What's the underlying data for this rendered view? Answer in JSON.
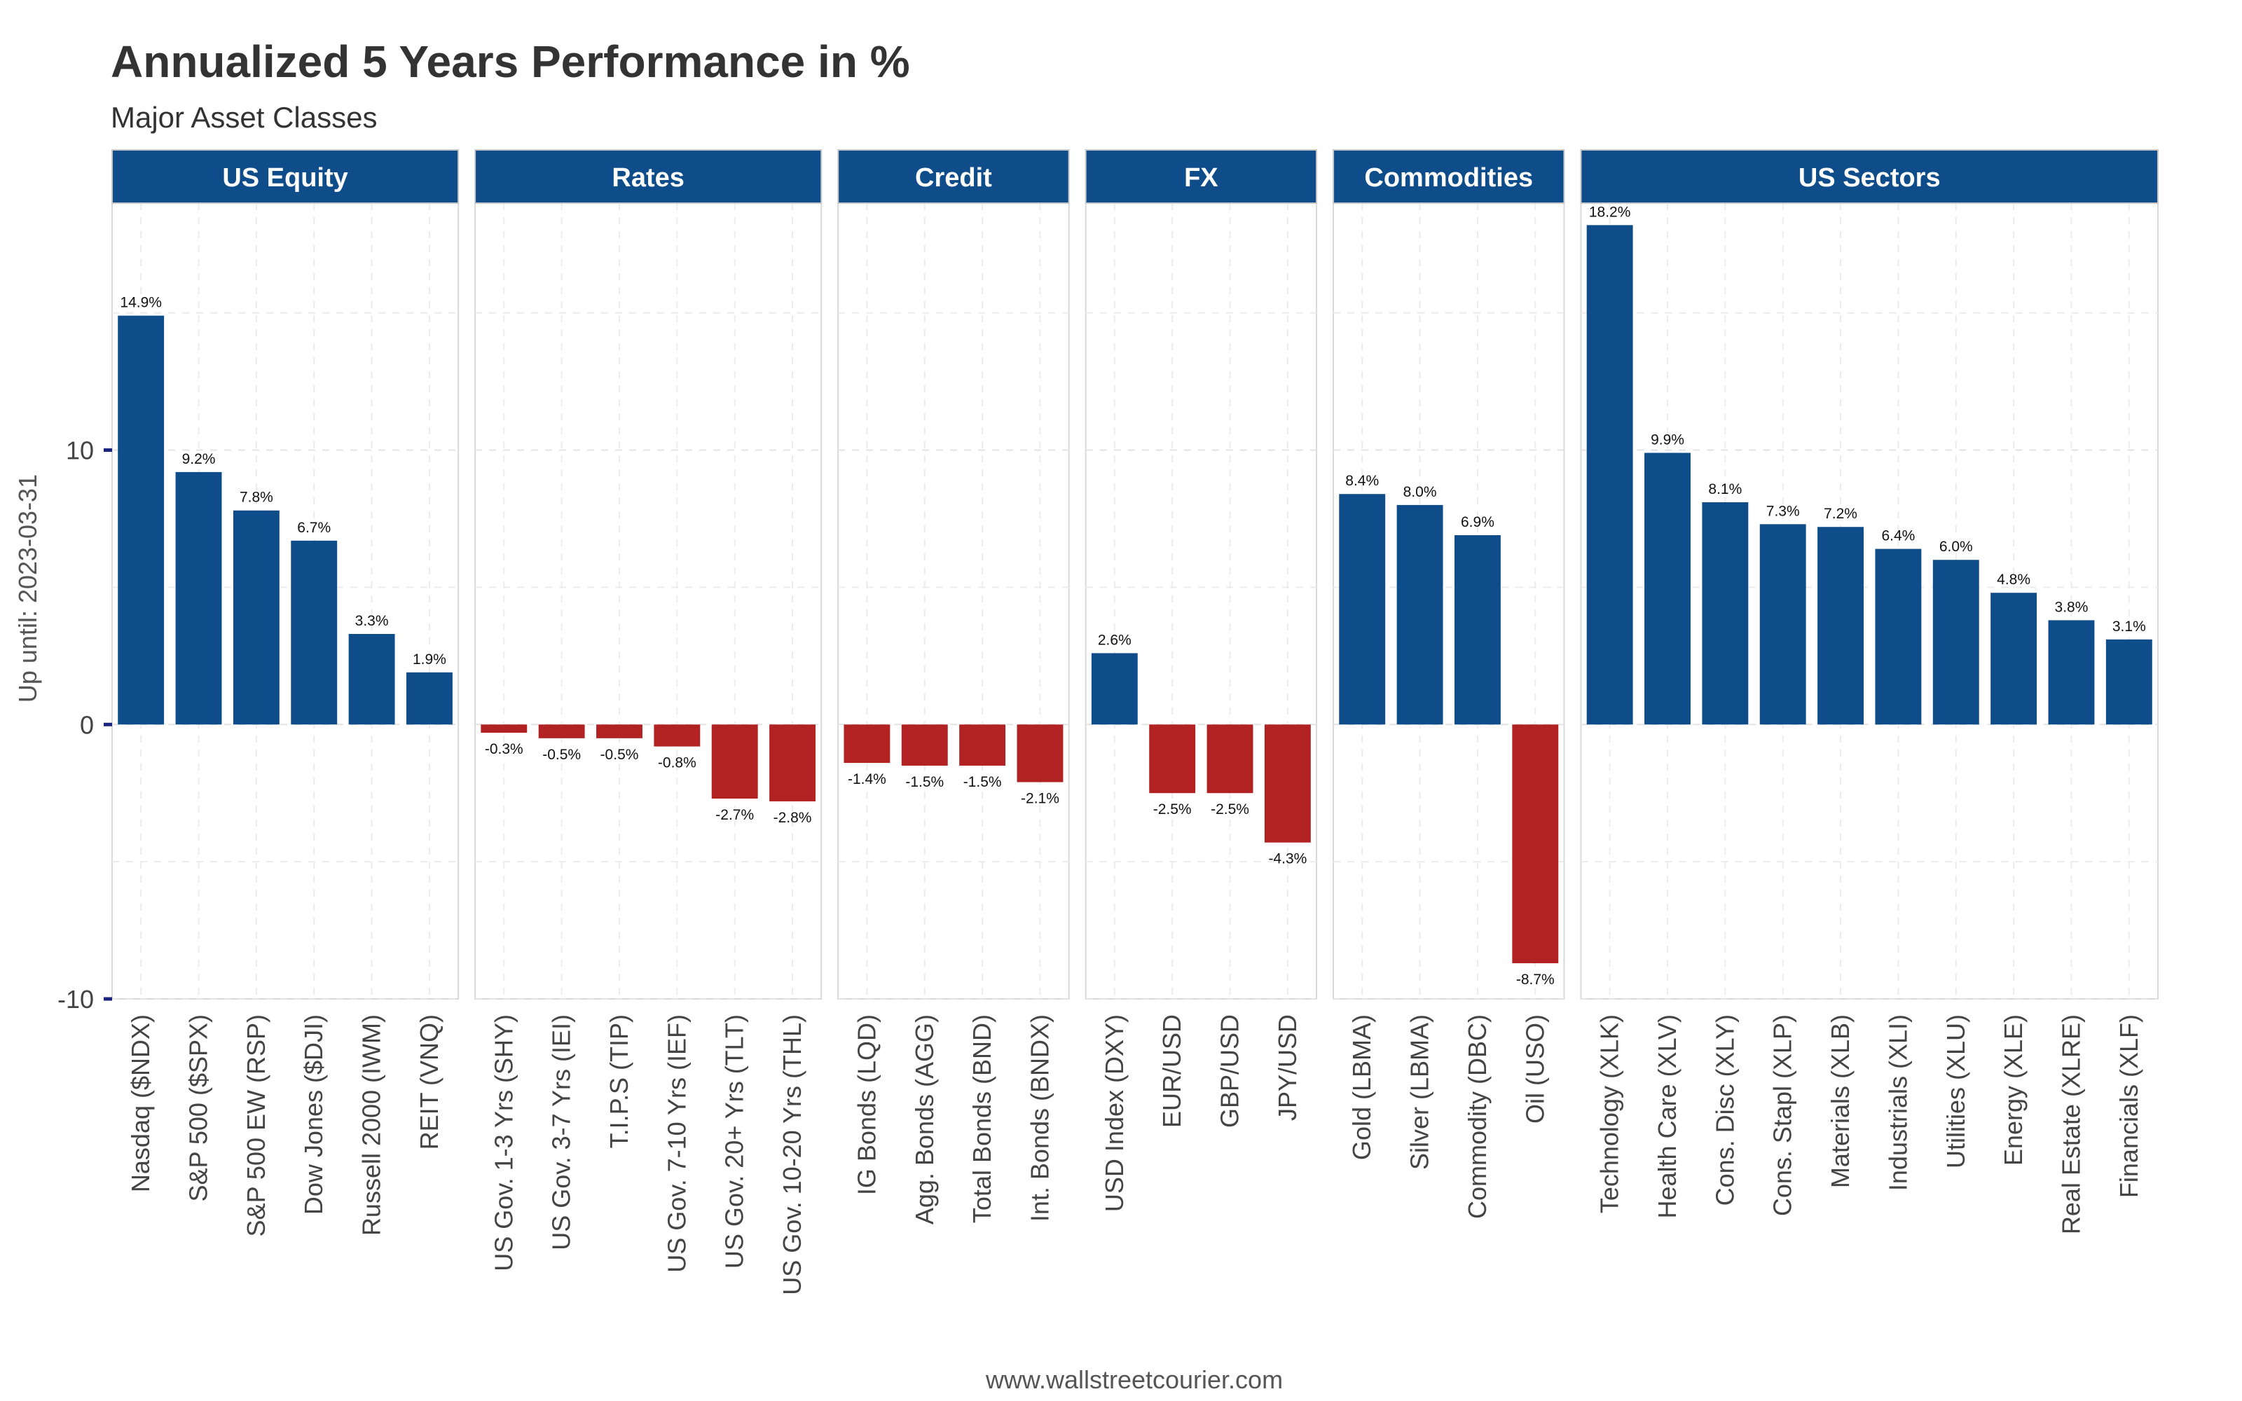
{
  "chart_data": {
    "type": "bar",
    "title": "Annualized 5 Years Performance in %",
    "subtitle": "Major Asset Classes",
    "ylabel": "Up until: 2023-03-31",
    "caption": "www.wallstreetcourier.com",
    "ylim": [
      -10,
      19
    ],
    "yticks": [
      -10,
      0,
      10
    ],
    "grid": true,
    "colors": {
      "positive": "#0e4c8a",
      "negative": "#b22222",
      "strip": "#0e4c8a"
    },
    "panels": [
      {
        "name": "US Equity",
        "categories": [
          "Nasdaq ($NDX)",
          "S&P 500 ($SPX)",
          "S&P 500 EW (RSP)",
          "Dow Jones ($DJI)",
          "Russell 2000 (IWM)",
          "REIT (VNQ)"
        ],
        "values": [
          14.9,
          9.2,
          7.8,
          6.7,
          3.3,
          1.9
        ],
        "labels": [
          "14.9%",
          "9.2%",
          "7.8%",
          "6.7%",
          "3.3%",
          "1.9%"
        ]
      },
      {
        "name": "Rates",
        "categories": [
          "US Gov. 1-3 Yrs (SHY)",
          "US Gov. 3-7 Yrs (IEI)",
          "T.I.P.S (TIP)",
          "US Gov. 7-10 Yrs (IEF)",
          "US Gov. 20+ Yrs (TLT)",
          "US Gov. 10-20 Yrs (THL)"
        ],
        "values": [
          -0.3,
          -0.5,
          -0.5,
          -0.8,
          -2.7,
          -2.8
        ],
        "labels": [
          "-0.3%",
          "-0.5%",
          "-0.5%",
          "-0.8%",
          "-2.7%",
          "-2.8%"
        ]
      },
      {
        "name": "Credit",
        "categories": [
          "IG Bonds (LQD)",
          "Agg. Bonds (AGG)",
          "Total Bonds (BND)",
          "Int. Bonds (BNDX)"
        ],
        "values": [
          -1.4,
          -1.5,
          -1.5,
          -2.1
        ],
        "labels": [
          "-1.4%",
          "-1.5%",
          "-1.5%",
          "-2.1%"
        ]
      },
      {
        "name": "FX",
        "categories": [
          "USD Index (DXY)",
          "EUR/USD",
          "GBP/USD",
          "JPY/USD"
        ],
        "values": [
          2.6,
          -2.5,
          -2.5,
          -4.3
        ],
        "labels": [
          "2.6%",
          "-2.5%",
          "-2.5%",
          "-4.3%"
        ]
      },
      {
        "name": "Commodities",
        "categories": [
          "Gold (LBMA)",
          "Silver (LBMA)",
          "Commodity (DBC)",
          "Oil (USO)"
        ],
        "values": [
          8.4,
          8.0,
          6.9,
          -8.7
        ],
        "labels": [
          "8.4%",
          "8.0%",
          "6.9%",
          "-8.7%"
        ]
      },
      {
        "name": "US Sectors",
        "categories": [
          "Technology (XLK)",
          "Health Care (XLV)",
          "Cons. Disc (XLY)",
          "Cons. Stapl (XLP)",
          "Materials (XLB)",
          "Industrials (XLI)",
          "Utilities (XLU)",
          "Energy (XLE)",
          "Real Estate (XLRE)",
          "Financials (XLF)"
        ],
        "values": [
          18.2,
          9.9,
          8.1,
          7.3,
          7.2,
          6.4,
          6.0,
          4.8,
          3.8,
          3.1
        ],
        "labels": [
          "18.2%",
          "9.9%",
          "8.1%",
          "7.3%",
          "7.2%",
          "6.4%",
          "6.0%",
          "4.8%",
          "3.8%",
          "3.1%"
        ]
      }
    ]
  }
}
